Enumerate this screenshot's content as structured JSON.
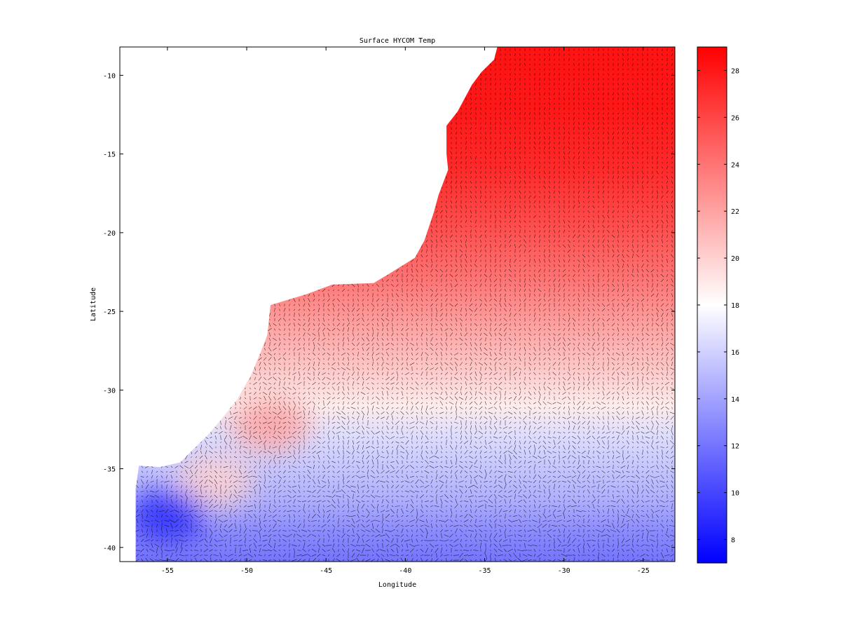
{
  "chart_data": {
    "type": "heatmap",
    "title": "Surface HYCOM Temp",
    "xlabel": "Longitude",
    "ylabel": "Latitude",
    "xlim": [
      -58,
      -23
    ],
    "ylim": [
      -40.9,
      -8.2
    ],
    "x_ticks": [
      -55,
      -50,
      -45,
      -40,
      -35,
      -30,
      -25
    ],
    "y_ticks": [
      -10,
      -15,
      -20,
      -25,
      -30,
      -35,
      -40
    ],
    "grid": false,
    "overlay": "surface current vectors (quiver)",
    "colorbar": {
      "position": "right",
      "range": [
        7,
        29
      ],
      "ticks": [
        8,
        10,
        12,
        14,
        16,
        18,
        20,
        22,
        24,
        26,
        28
      ],
      "low_color": "#0000ff",
      "mid_color": "#ffffff",
      "high_color": "#ff0000"
    },
    "land_boundary": [
      [
        -34.2,
        -8.2
      ],
      [
        -34.4,
        -9.0
      ],
      [
        -35.2,
        -9.8
      ],
      [
        -35.8,
        -10.6
      ],
      [
        -36.7,
        -12.3
      ],
      [
        -37.4,
        -13.2
      ],
      [
        -37.4,
        -15.0
      ],
      [
        -37.3,
        -16.0
      ],
      [
        -37.9,
        -17.6
      ],
      [
        -38.2,
        -18.7
      ],
      [
        -38.8,
        -20.5
      ],
      [
        -39.4,
        -21.6
      ],
      [
        -41.0,
        -22.6
      ],
      [
        -42.0,
        -23.2
      ],
      [
        -44.6,
        -23.3
      ],
      [
        -46.2,
        -23.9
      ],
      [
        -48.5,
        -24.6
      ],
      [
        -48.7,
        -26.5
      ],
      [
        -49.0,
        -27.3
      ],
      [
        -49.7,
        -29.0
      ],
      [
        -50.6,
        -30.6
      ],
      [
        -51.4,
        -31.6
      ],
      [
        -52.3,
        -32.7
      ],
      [
        -53.4,
        -33.8
      ],
      [
        -54.2,
        -34.6
      ],
      [
        -55.5,
        -34.9
      ],
      [
        -56.8,
        -34.8
      ],
      [
        -57.0,
        -36.3
      ],
      [
        -57.0,
        -40.9
      ]
    ],
    "temperature_field": [
      {
        "lat": -8.2,
        "temp": 28.2
      },
      {
        "lat": -12,
        "temp": 28.0
      },
      {
        "lat": -16,
        "temp": 27.2
      },
      {
        "lat": -20,
        "temp": 25.5
      },
      {
        "lat": -23,
        "temp": 24.0
      },
      {
        "lat": -26,
        "temp": 22.0
      },
      {
        "lat": -28.5,
        "temp": 20.5
      },
      {
        "lat": -31,
        "temp": 18.8
      },
      {
        "lat": -33,
        "temp": 16.5
      },
      {
        "lat": -35,
        "temp": 15.5
      },
      {
        "lat": -37,
        "temp": 14.5
      },
      {
        "lat": -39,
        "temp": 13.0
      },
      {
        "lat": -40.9,
        "temp": 12.0
      }
    ],
    "coastal_features": [
      {
        "lon": -48.5,
        "lat": -32.2,
        "temp": 22,
        "note": "warm tongue along shelf"
      },
      {
        "lon": -52.0,
        "lat": -35.8,
        "temp": 20,
        "note": "warm filament"
      },
      {
        "lon": -55.0,
        "lat": -38.0,
        "temp": 9,
        "note": "cold coastal water"
      }
    ]
  }
}
